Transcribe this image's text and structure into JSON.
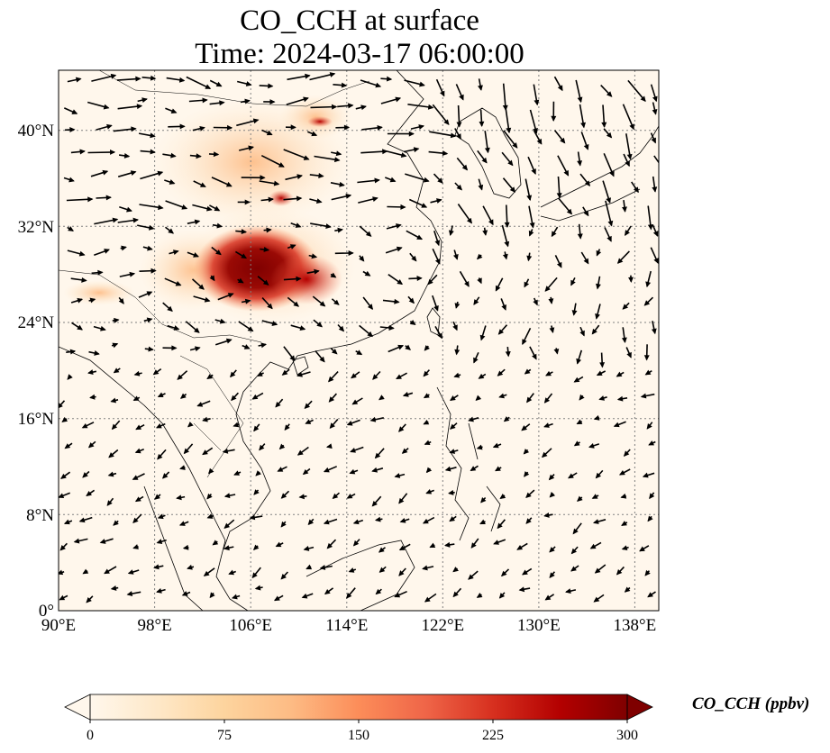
{
  "title": {
    "line1": "CO_CCH at surface",
    "line2": "Time: 2024-03-17 06:00:00"
  },
  "colorbar": {
    "label": "CO_CCH (ppbv)",
    "ticks": [
      "0",
      "75",
      "150",
      "225",
      "300"
    ],
    "range": [
      0,
      300
    ],
    "extend": "both",
    "colormap": [
      "#fff7ec",
      "#fee8c8",
      "#fdd49e",
      "#fdbb84",
      "#fc8d59",
      "#ef6548",
      "#d7301f",
      "#b30000",
      "#7f0000"
    ]
  },
  "map": {
    "lon_range": [
      90,
      140
    ],
    "lat_range": [
      0,
      45
    ],
    "grid": "dotted",
    "lon_ticks": [
      "90°E",
      "98°E",
      "106°E",
      "114°E",
      "122°E",
      "130°E",
      "138°E"
    ],
    "lat_ticks": [
      "40°N",
      "32°N",
      "24°N",
      "16°N",
      "8°N",
      "0°"
    ],
    "background_color": "#fff7ec",
    "wind_vectors": "black arrows"
  }
}
